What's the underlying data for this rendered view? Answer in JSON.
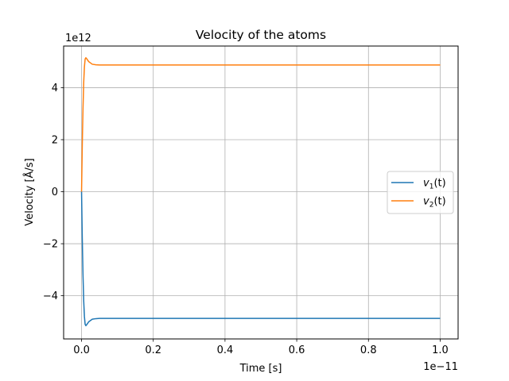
{
  "chart_data": {
    "type": "line",
    "title": "Velocity of the atoms",
    "xlabel": "Time [s]",
    "ylabel": "Velocity [Å/s]",
    "x_offset_label": "1e−11",
    "y_offset_label": "1e12",
    "xlim": [
      -5e-13,
      1.05e-11
    ],
    "ylim": [
      -5660000000000.0,
      5600000000000.0
    ],
    "grid": true,
    "legend_position": "center-right",
    "x_ticks": [
      0,
      2e-12,
      4e-12,
      6e-12,
      8e-12,
      1e-11
    ],
    "x_tick_labels": [
      "0.0",
      "0.2",
      "0.4",
      "0.6",
      "0.8",
      "1.0"
    ],
    "y_ticks": [
      -4000000000000.0,
      -2000000000000.0,
      0,
      2000000000000.0,
      4000000000000.0
    ],
    "y_tick_labels": [
      "−4",
      "−2",
      "0",
      "2",
      "4"
    ],
    "series": [
      {
        "name_base": "v",
        "name_sub": "1",
        "name_suffix": "(t)",
        "color": "#1f77b4",
        "x": [
          0,
          2e-14,
          4e-14,
          6e-14,
          8e-14,
          1e-13,
          1.2e-13,
          1.5e-13,
          2e-13,
          2.5e-13,
          3e-13,
          4e-13,
          5e-13,
          7e-13,
          1e-12,
          2e-12,
          4e-12,
          6e-12,
          8e-12,
          1e-11
        ],
        "values": [
          0,
          -1800000000000.0,
          -3200000000000.0,
          -4200000000000.0,
          -4800000000000.0,
          -5100000000000.0,
          -5150000000000.0,
          -5100000000000.0,
          -5000000000000.0,
          -4950000000000.0,
          -4900000000000.0,
          -4880000000000.0,
          -4870000000000.0,
          -4870000000000.0,
          -4870000000000.0,
          -4870000000000.0,
          -4870000000000.0,
          -4870000000000.0,
          -4870000000000.0,
          -4870000000000.0
        ]
      },
      {
        "name_base": "v",
        "name_sub": "2",
        "name_suffix": "(t)",
        "color": "#ff7f0e",
        "x": [
          0,
          2e-14,
          4e-14,
          6e-14,
          8e-14,
          1e-13,
          1.2e-13,
          1.5e-13,
          2e-13,
          2.5e-13,
          3e-13,
          4e-13,
          5e-13,
          7e-13,
          1e-12,
          2e-12,
          4e-12,
          6e-12,
          8e-12,
          1e-11
        ],
        "values": [
          0,
          1800000000000.0,
          3200000000000.0,
          4200000000000.0,
          4800000000000.0,
          5100000000000.0,
          5150000000000.0,
          5100000000000.0,
          5000000000000.0,
          4950000000000.0,
          4900000000000.0,
          4880000000000.0,
          4870000000000.0,
          4870000000000.0,
          4870000000000.0,
          4870000000000.0,
          4870000000000.0,
          4870000000000.0,
          4870000000000.0,
          4870000000000.0
        ]
      }
    ]
  }
}
